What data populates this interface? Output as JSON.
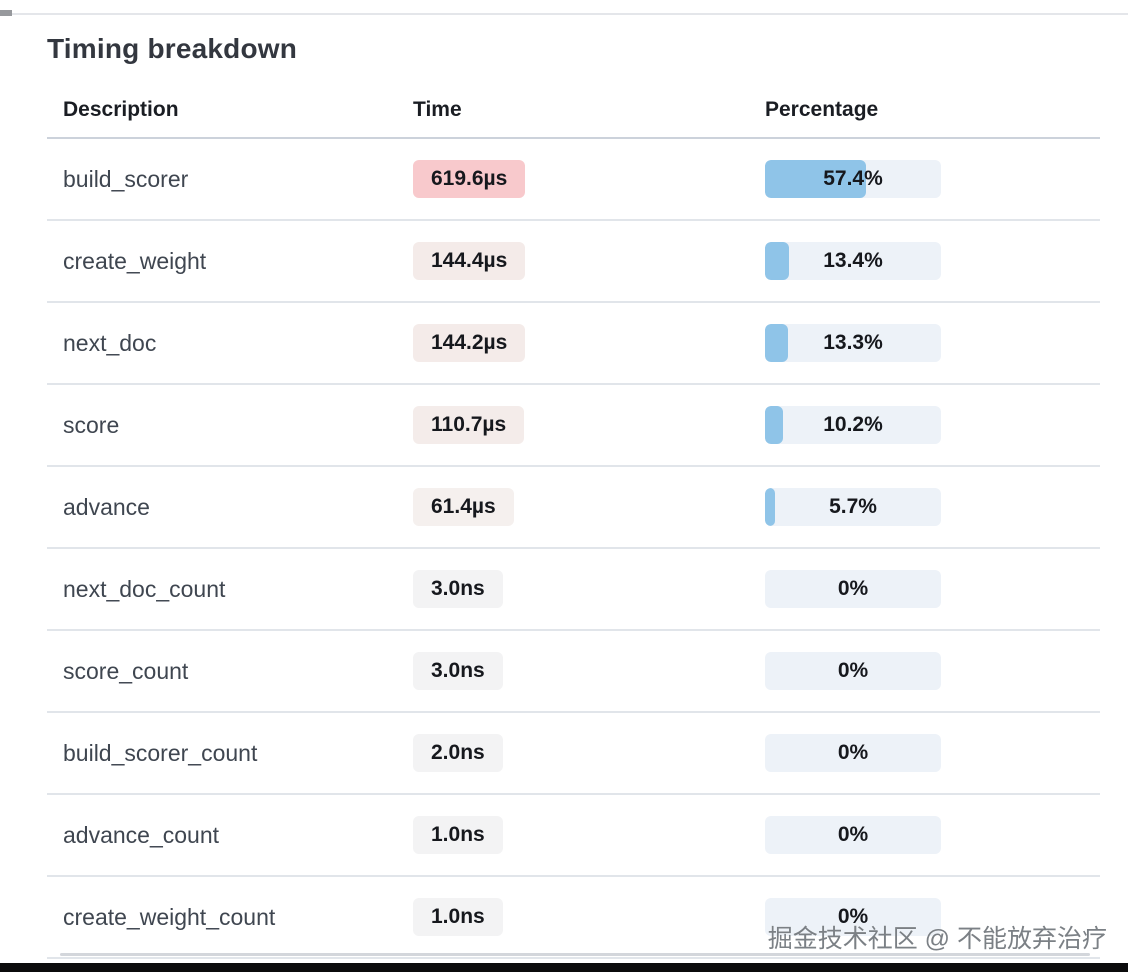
{
  "header": {
    "title": "Timing breakdown"
  },
  "table": {
    "columns": [
      {
        "key": "description",
        "label": "Description"
      },
      {
        "key": "time",
        "label": "Time"
      },
      {
        "key": "percentage",
        "label": "Percentage"
      }
    ],
    "rows": [
      {
        "description": "build_scorer",
        "time": "619.6µs",
        "percentage_label": "57.4%",
        "percent": 57.4,
        "time_badge_color": "#f8c9cc"
      },
      {
        "description": "create_weight",
        "time": "144.4µs",
        "percentage_label": "13.4%",
        "percent": 13.4,
        "time_badge_color": "#f4ebe9"
      },
      {
        "description": "next_doc",
        "time": "144.2µs",
        "percentage_label": "13.3%",
        "percent": 13.3,
        "time_badge_color": "#f4ebe9"
      },
      {
        "description": "score",
        "time": "110.7µs",
        "percentage_label": "10.2%",
        "percent": 10.2,
        "time_badge_color": "#f4ecea"
      },
      {
        "description": "advance",
        "time": "61.4µs",
        "percentage_label": "5.7%",
        "percent": 5.7,
        "time_badge_color": "#f5f0ee"
      },
      {
        "description": "next_doc_count",
        "time": "3.0ns",
        "percentage_label": "0%",
        "percent": 0,
        "time_badge_color": "#f3f3f4"
      },
      {
        "description": "score_count",
        "time": "3.0ns",
        "percentage_label": "0%",
        "percent": 0,
        "time_badge_color": "#f3f3f4"
      },
      {
        "description": "build_scorer_count",
        "time": "2.0ns",
        "percentage_label": "0%",
        "percent": 0,
        "time_badge_color": "#f3f3f4"
      },
      {
        "description": "advance_count",
        "time": "1.0ns",
        "percentage_label": "0%",
        "percent": 0,
        "time_badge_color": "#f3f3f4"
      },
      {
        "description": "create_weight_count",
        "time": "1.0ns",
        "percentage_label": "0%",
        "percent": 0,
        "time_badge_color": "#f3f3f4"
      }
    ]
  },
  "colors": {
    "percent_bar_fill": "#8fc4e8",
    "percent_bar_bg": "#edf2f8",
    "high_time_badge": "#f8c9cc",
    "divider": "#e1e5ea",
    "header_divider": "#ccd2db"
  },
  "watermark": {
    "text": "掘金技术社区 @ 不能放弃治疗"
  }
}
